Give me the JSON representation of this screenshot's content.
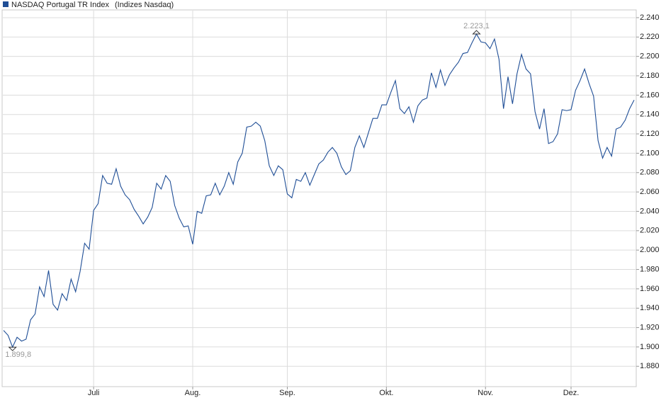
{
  "chart_data": {
    "type": "line",
    "series": [
      {
        "name": "NASDAQ Portugal TR Index",
        "color": "#1f4e96",
        "values": [
          1917,
          1912,
          1899.8,
          1910,
          1906,
          1908,
          1928,
          1934,
          1962,
          1952,
          1979,
          1944,
          1938,
          1955,
          1948,
          1970,
          1957,
          1978,
          2007,
          2001,
          2041,
          2048,
          2077,
          2069,
          2068,
          2084,
          2066,
          2057,
          2052,
          2042,
          2035,
          2027,
          2034,
          2044,
          2069,
          2063,
          2077,
          2071,
          2046,
          2033,
          2024,
          2025,
          2006,
          2040,
          2038,
          2056,
          2057,
          2069,
          2057,
          2066,
          2080,
          2068,
          2091,
          2100,
          2127,
          2128,
          2132,
          2128,
          2113,
          2087,
          2077,
          2087,
          2083,
          2058,
          2054,
          2073,
          2071,
          2080,
          2067,
          2078,
          2089,
          2093,
          2101,
          2106,
          2100,
          2086,
          2078,
          2082,
          2106,
          2118,
          2106,
          2121,
          2136,
          2136,
          2150,
          2150,
          2163,
          2175,
          2146,
          2141,
          2148,
          2132,
          2149,
          2155,
          2157,
          2183,
          2168,
          2186,
          2170,
          2181,
          2188,
          2194,
          2203,
          2204,
          2214,
          2223.1,
          2215,
          2214,
          2208,
          2218,
          2197,
          2146,
          2179,
          2151,
          2182,
          2202,
          2187,
          2182,
          2143,
          2125,
          2146,
          2110,
          2112,
          2120,
          2145,
          2144,
          2145,
          2165,
          2175,
          2187,
          2172,
          2159,
          2113,
          2095,
          2106,
          2097,
          2125,
          2127,
          2134,
          2146,
          2155
        ]
      }
    ],
    "source": "(Indizes Nasdaq)",
    "categories": [
      null,
      null,
      null,
      null,
      null,
      null,
      null,
      null,
      null,
      null,
      null,
      null,
      null,
      null,
      null,
      null,
      null,
      null,
      null,
      null,
      "Juli",
      null,
      null,
      null,
      null,
      null,
      null,
      null,
      null,
      null,
      null,
      null,
      null,
      null,
      null,
      null,
      null,
      null,
      null,
      null,
      null,
      null,
      "Aug.",
      null,
      null,
      null,
      null,
      null,
      null,
      null,
      null,
      null,
      null,
      null,
      null,
      null,
      null,
      null,
      null,
      null,
      null,
      null,
      null,
      "Sep.",
      null,
      null,
      null,
      null,
      null,
      null,
      null,
      null,
      null,
      null,
      null,
      null,
      null,
      null,
      null,
      null,
      null,
      null,
      null,
      null,
      null,
      "Okt.",
      null,
      null,
      null,
      null,
      null,
      null,
      null,
      null,
      null,
      null,
      null,
      null,
      null,
      null,
      null,
      null,
      null,
      null,
      null,
      null,
      null,
      "Nov.",
      null,
      null,
      null,
      null,
      null,
      null,
      null,
      null,
      null,
      null,
      null,
      null,
      null,
      null,
      null,
      null,
      null,
      null,
      "Dez.",
      null,
      null,
      null,
      null,
      null,
      null,
      null,
      null,
      null,
      null,
      null,
      null,
      null,
      null
    ],
    "ylim": [
      1859,
      2248
    ],
    "yticks": [
      {
        "value": 1880,
        "label": "1.880"
      },
      {
        "value": 1900,
        "label": "1.900"
      },
      {
        "value": 1920,
        "label": "1.920"
      },
      {
        "value": 1940,
        "label": "1.940"
      },
      {
        "value": 1960,
        "label": "1.960"
      },
      {
        "value": 1980,
        "label": "1.980"
      },
      {
        "value": 2000,
        "label": "2.000"
      },
      {
        "value": 2020,
        "label": "2.020"
      },
      {
        "value": 2040,
        "label": "2.040"
      },
      {
        "value": 2060,
        "label": "2.060"
      },
      {
        "value": 2080,
        "label": "2.080"
      },
      {
        "value": 2100,
        "label": "2.100"
      },
      {
        "value": 2120,
        "label": "2.120"
      },
      {
        "value": 2140,
        "label": "2.140"
      },
      {
        "value": 2160,
        "label": "2.160"
      },
      {
        "value": 2180,
        "label": "2.180"
      },
      {
        "value": 2200,
        "label": "2.200"
      },
      {
        "value": 2220,
        "label": "2.220"
      },
      {
        "value": 2240,
        "label": "2.240"
      }
    ],
    "annotations": [
      {
        "value": 2223.1,
        "label": "2.223,1",
        "position": "above"
      },
      {
        "value": 1899.8,
        "label": "1.899,8",
        "position": "below"
      }
    ],
    "grid": true
  }
}
